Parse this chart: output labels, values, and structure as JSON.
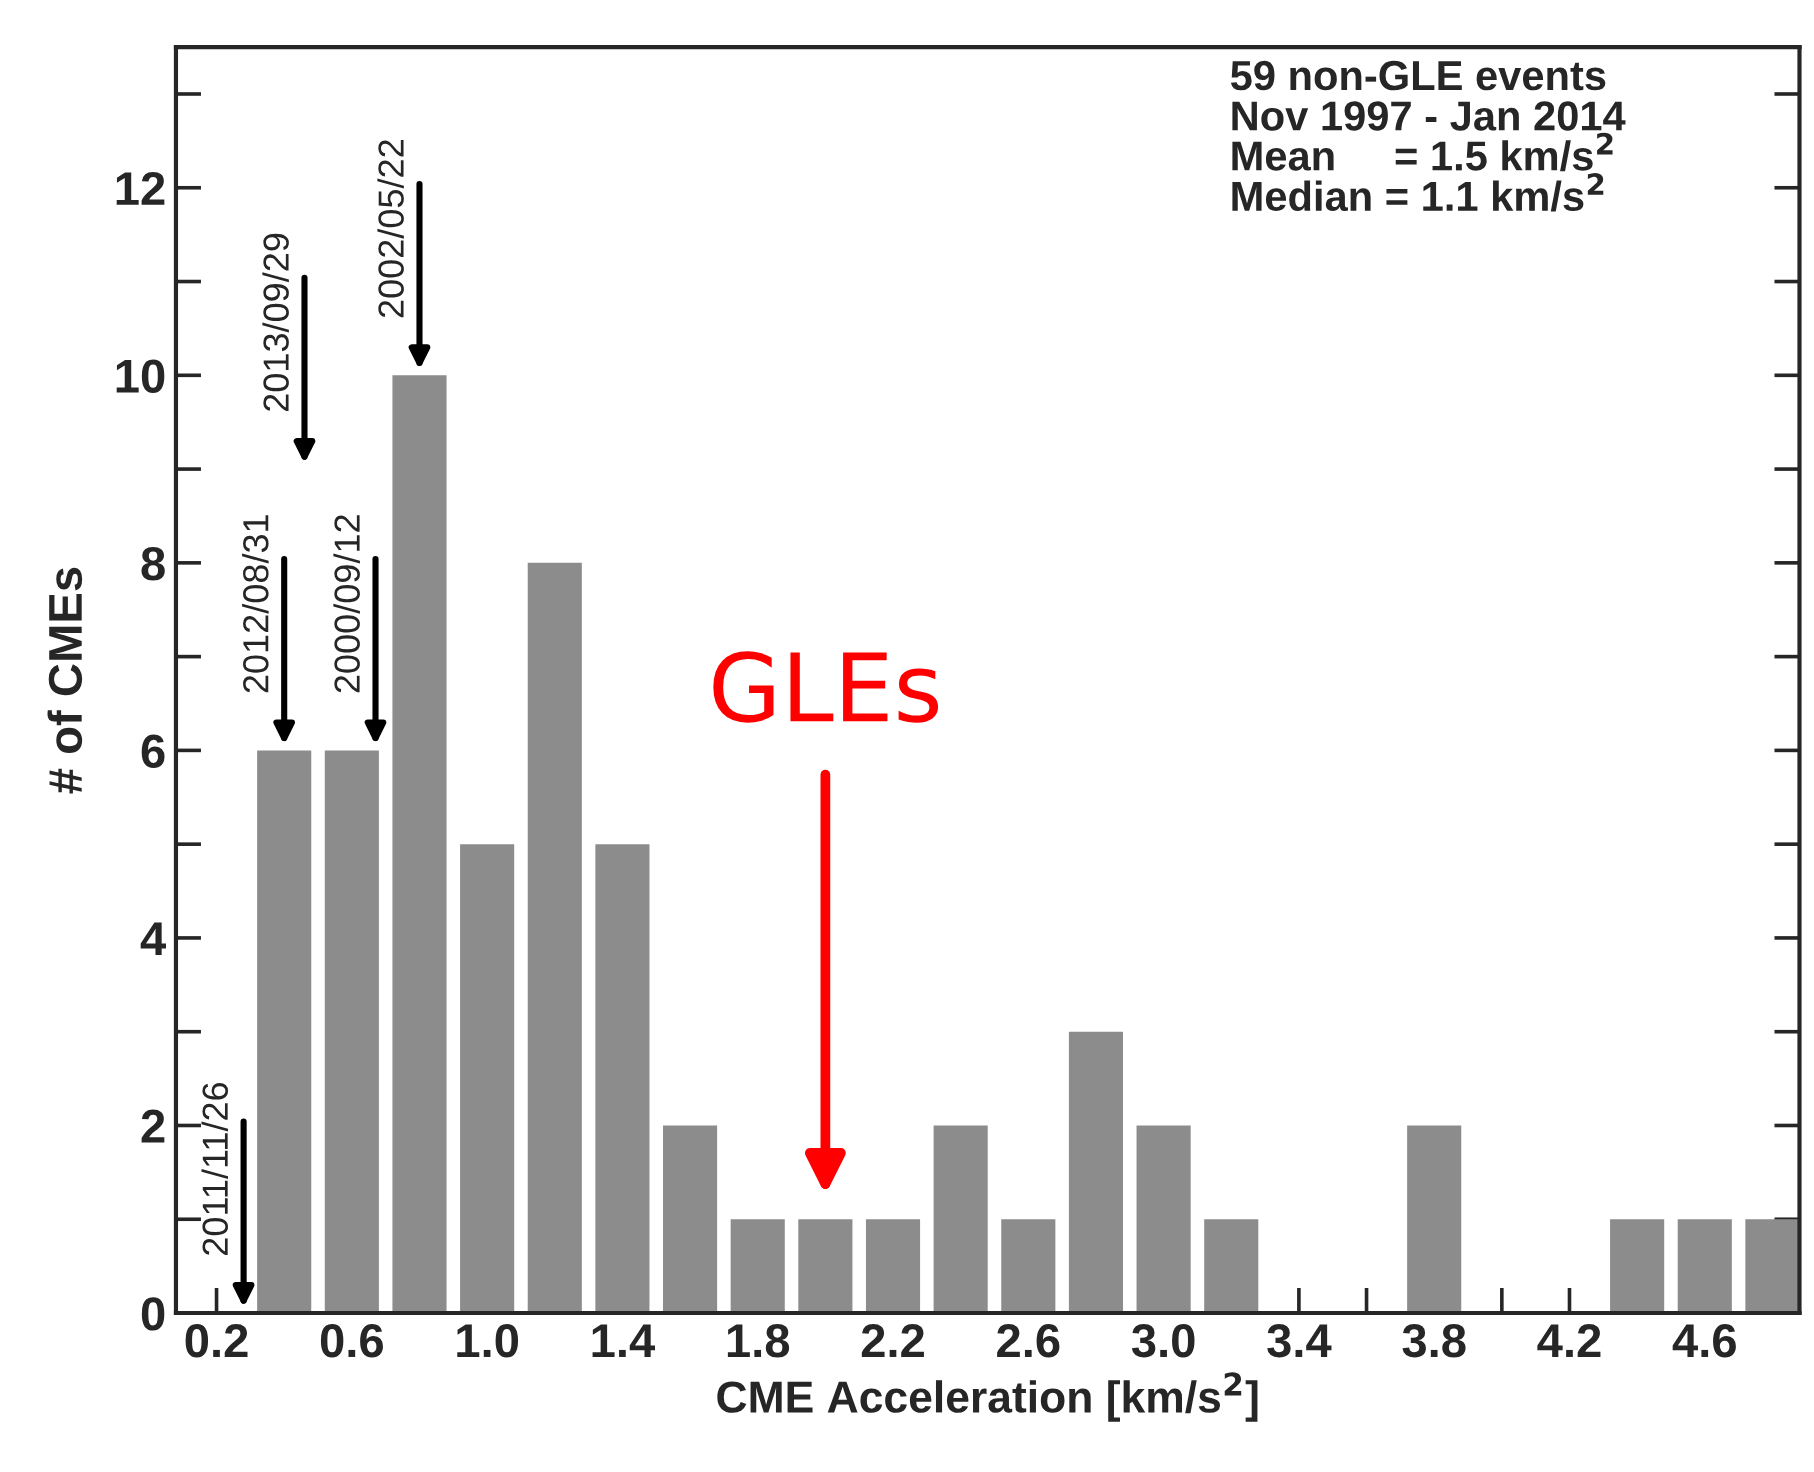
{
  "chart_data": {
    "type": "histogram",
    "xlabel": "CME Acceleration [km/s$^{2}$]",
    "ylabel": "# of CMEs",
    "bins": [
      0.3,
      0.5,
      0.7,
      0.9,
      1.1,
      1.3,
      1.5,
      1.7,
      1.9,
      2.1,
      2.3,
      2.5,
      2.7,
      2.9,
      3.1,
      3.3,
      3.5,
      3.7,
      3.9,
      4.1,
      4.3,
      4.5,
      4.7,
      4.9
    ],
    "values": [
      6,
      6,
      10,
      5,
      8,
      5,
      2,
      1,
      1,
      1,
      2,
      1,
      3,
      2,
      1,
      0,
      0,
      2,
      0,
      0,
      1,
      1,
      1
    ],
    "color": "#8c8c8c",
    "xlim": [
      0.08,
      4.88
    ],
    "ylim": [
      0,
      13.5
    ],
    "xticks": [
      0.2,
      {
        "value": 0.4,
        "label": null
      },
      0.6,
      {
        "value": 0.8,
        "label": null
      },
      {
        "value": 1.0,
        "label": "1.0"
      },
      {
        "value": 1.2,
        "label": null
      },
      1.4,
      {
        "value": 1.6,
        "label": null
      },
      1.8,
      {
        "value": 2.0,
        "label": null
      },
      2.2,
      {
        "value": 2.4,
        "label": null
      },
      2.6,
      {
        "value": 2.8,
        "label": null
      },
      {
        "value": 3.0,
        "label": "3.0"
      },
      {
        "value": 3.2,
        "label": null
      },
      3.4,
      {
        "value": 3.6,
        "label": null
      },
      3.8,
      {
        "value": 4.0,
        "label": null
      },
      4.2,
      {
        "value": 4.4,
        "label": null
      },
      4.6,
      {
        "value": 4.8,
        "label": null
      }
    ],
    "yticks": [
      0,
      {
        "value": 1,
        "label": null
      },
      2,
      {
        "value": 3,
        "label": null
      },
      4,
      {
        "value": 5,
        "label": null
      },
      6,
      {
        "value": 7,
        "label": null
      },
      8,
      {
        "value": 9,
        "label": null
      },
      10,
      {
        "value": 11,
        "label": null
      },
      12,
      {
        "value": 13,
        "label": null
      }
    ],
    "grid": false,
    "annotations": [
      "59 non-GLE events\nNov 1997 - Jan 2014\nMean     = 1.5 km/s$^{2}$\nMedian = 1.1 km/s$^{2}$",
      "2011/11/26",
      {
        "text": "2012/08/31",
        "x": 0.4,
        "y": 6
      },
      "2013/09/29",
      "2000/09/12",
      {
        "text": "2002/05/22",
        "x": 0.8,
        "y": 10
      },
      "GLEs"
    ]
  }
}
